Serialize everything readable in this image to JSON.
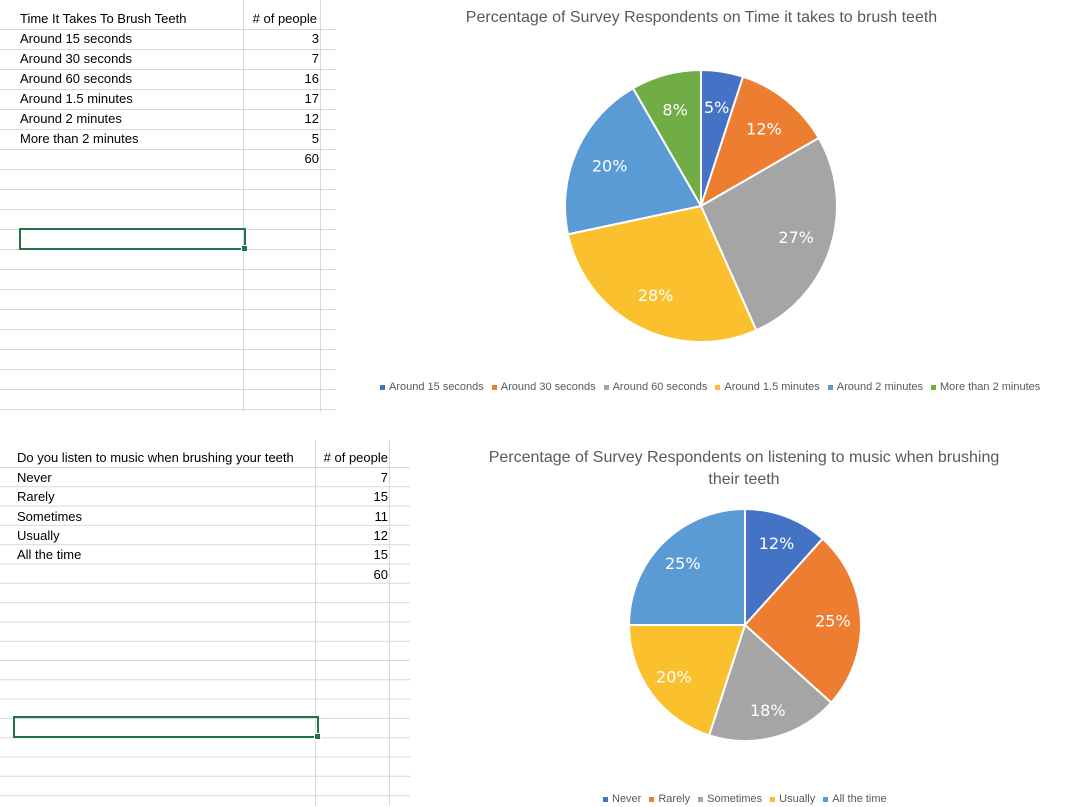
{
  "table1": {
    "header": [
      "Time It Takes To Brush Teeth",
      "# of people"
    ],
    "rows": [
      [
        "Around 15 seconds",
        "3"
      ],
      [
        "Around 30 seconds",
        "7"
      ],
      [
        "Around 60 seconds",
        "16"
      ],
      [
        "Around 1.5 minutes",
        "17"
      ],
      [
        "Around 2 minutes",
        "12"
      ],
      [
        "More than 2 minutes",
        "5"
      ],
      [
        "",
        "60"
      ]
    ]
  },
  "table2": {
    "header": [
      "Do you listen to music when brushing your teeth",
      "# of people"
    ],
    "rows": [
      [
        "Never",
        "7"
      ],
      [
        "Rarely",
        "15"
      ],
      [
        "Sometimes",
        "11"
      ],
      [
        "Usually",
        "12"
      ],
      [
        "All the time",
        "15"
      ],
      [
        "",
        "60"
      ]
    ]
  },
  "colors": {
    "blue": "#4472C4",
    "orange": "#ED7D31",
    "gray": "#A5A5A5",
    "gold": "#FFC000",
    "lightblue": "#5B9BD5",
    "green": "#70AD47",
    "selection": "#217346"
  },
  "chart_data": [
    {
      "type": "pie",
      "title": "Percentage of Survey Respondents on Time it takes to brush teeth",
      "categories": [
        "Around 15 seconds",
        "Around 30 seconds",
        "Around 60 seconds",
        "Around 1.5 minutes",
        "Around 2 minutes",
        "More than 2 minutes"
      ],
      "values": [
        3,
        7,
        16,
        17,
        12,
        5
      ],
      "labels": [
        "5%",
        "12%",
        "27%",
        "28%",
        "20%",
        "8%"
      ],
      "colors": [
        "#4472C4",
        "#ED7D31",
        "#A5A5A5",
        "#FBC02D",
        "#5B9BD5",
        "#70AD47"
      ],
      "legend": "bottom"
    },
    {
      "type": "pie",
      "title": "Percentage of Survey Respondents on listening to music when brushing their teeth",
      "categories": [
        "Never",
        "Rarely",
        "Sometimes",
        "Usually",
        "All the time"
      ],
      "values": [
        7,
        15,
        11,
        12,
        15
      ],
      "labels": [
        "12%",
        "25%",
        "18%",
        "20%",
        "25%"
      ],
      "colors": [
        "#4472C4",
        "#ED7D31",
        "#A5A5A5",
        "#FBC02D",
        "#5B9BD5"
      ],
      "legend": "bottom"
    }
  ]
}
